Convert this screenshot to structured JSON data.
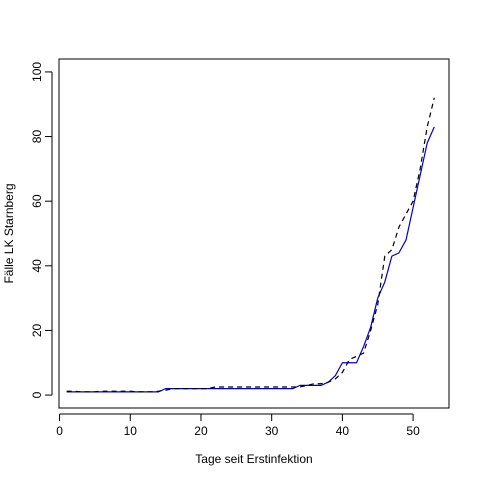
{
  "chart_data": {
    "type": "line",
    "title": "",
    "xlabel": "Tage seit Erstinfektion",
    "ylabel": "Fälle LK Starnberg",
    "xlim": [
      -0.08,
      55.08
    ],
    "ylim": [
      -4,
      104
    ],
    "xticks": [
      0,
      10,
      20,
      30,
      40,
      50
    ],
    "yticks": [
      0,
      20,
      40,
      60,
      80,
      100
    ],
    "grid": false,
    "legend": "none",
    "series": [
      {
        "style": "solid",
        "color": "#0000cc",
        "x": [
          1,
          2,
          3,
          4,
          5,
          6,
          7,
          8,
          9,
          10,
          11,
          12,
          13,
          14,
          15,
          16,
          17,
          18,
          19,
          20,
          21,
          22,
          23,
          24,
          25,
          26,
          27,
          28,
          29,
          30,
          31,
          32,
          33,
          34,
          35,
          36,
          37,
          38,
          39,
          40,
          41,
          42,
          43,
          44,
          45,
          46,
          47,
          48,
          49,
          50,
          51,
          52,
          53
        ],
        "y": [
          1,
          1,
          1,
          1,
          1,
          1,
          1,
          1,
          1,
          1,
          1,
          1,
          1,
          1,
          2,
          2,
          2,
          2,
          2,
          2,
          2,
          2,
          2,
          2,
          2,
          2,
          2,
          2,
          2,
          2,
          2,
          2,
          2,
          3,
          3,
          3,
          3,
          4,
          6,
          10,
          10,
          10,
          15,
          21,
          30,
          35,
          43,
          44,
          48,
          58,
          68,
          78,
          83
        ]
      },
      {
        "style": "dashed",
        "color": "#000000",
        "x": [
          1,
          2,
          3,
          4,
          5,
          6,
          7,
          8,
          9,
          10,
          11,
          12,
          13,
          14,
          15,
          16,
          17,
          18,
          19,
          20,
          21,
          22,
          23,
          24,
          25,
          26,
          27,
          28,
          29,
          30,
          31,
          32,
          33,
          34,
          35,
          36,
          37,
          38,
          39,
          40,
          41,
          42,
          43,
          44,
          45,
          46,
          47,
          48,
          49,
          50,
          51,
          52,
          53
        ],
        "y": [
          1.2,
          1.2,
          1,
          1,
          1,
          1.2,
          1.2,
          1.2,
          1.2,
          1.2,
          1,
          1,
          1,
          1.2,
          1.5,
          2,
          2,
          2,
          2,
          2,
          2,
          2.5,
          2.5,
          2.5,
          2.5,
          2.5,
          2.5,
          2.5,
          2.5,
          2.5,
          2.5,
          2.5,
          2.5,
          2.5,
          3,
          3.5,
          3.5,
          4,
          5,
          7,
          11,
          12,
          13,
          20,
          28,
          43,
          45,
          52,
          56,
          60,
          70,
          83,
          92
        ]
      }
    ]
  },
  "colors": {
    "axis": "#000000",
    "series_1": "#0000cc",
    "series_2": "#000000"
  }
}
